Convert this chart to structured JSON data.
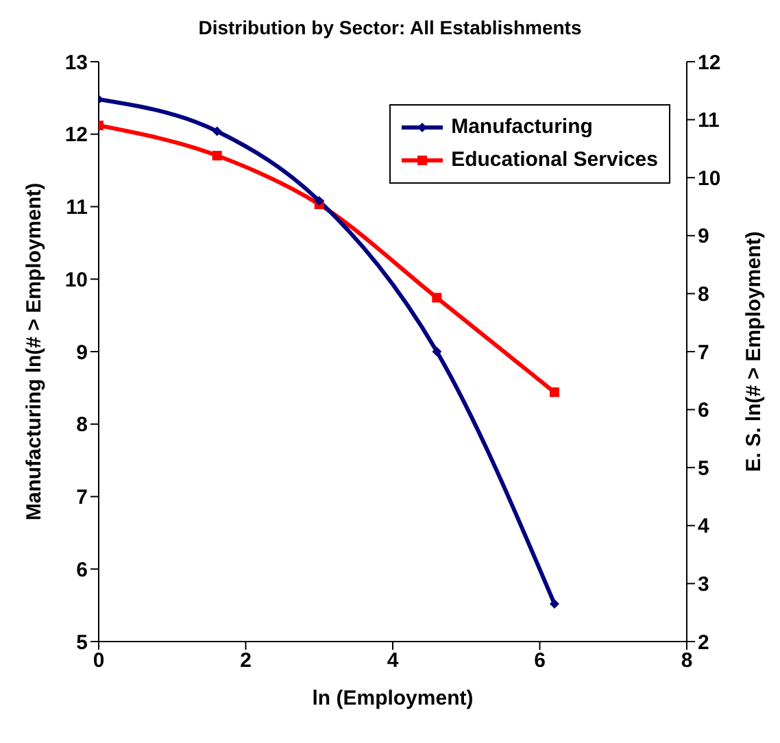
{
  "chart_data": {
    "type": "line",
    "title": "Distribution by Sector: All Establishments",
    "xlabel": "ln (Employment)",
    "ylabel": "Manufacturing ln(# > Employment)",
    "y2label": "E. S. ln(# > Employment)",
    "series": [
      {
        "name": "Manufacturing",
        "color": "#000080",
        "marker": "diamond",
        "x": [
          0,
          1.61,
          3.0,
          4.6,
          6.2
        ],
        "values": [
          12.48,
          12.04,
          11.08,
          9.0,
          5.52
        ]
      },
      {
        "name": "Educational Services",
        "color": "#ff0000",
        "marker": "square",
        "axis": "y2",
        "x": [
          0,
          1.61,
          3.0,
          4.6,
          6.2
        ],
        "values": [
          10.9,
          10.38,
          9.54,
          7.93,
          6.3
        ]
      }
    ],
    "xlim": [
      0,
      8
    ],
    "xticks": [
      0,
      2,
      4,
      6,
      8
    ],
    "ylim": [
      5,
      13
    ],
    "yticks": [
      5,
      6,
      7,
      8,
      9,
      10,
      11,
      12,
      13
    ],
    "y2lim": [
      2,
      12
    ],
    "y2ticks": [
      2,
      3,
      4,
      5,
      6,
      7,
      8,
      9,
      10,
      11,
      12
    ],
    "legend": "top right",
    "grid": false,
    "line_style": "solid"
  }
}
